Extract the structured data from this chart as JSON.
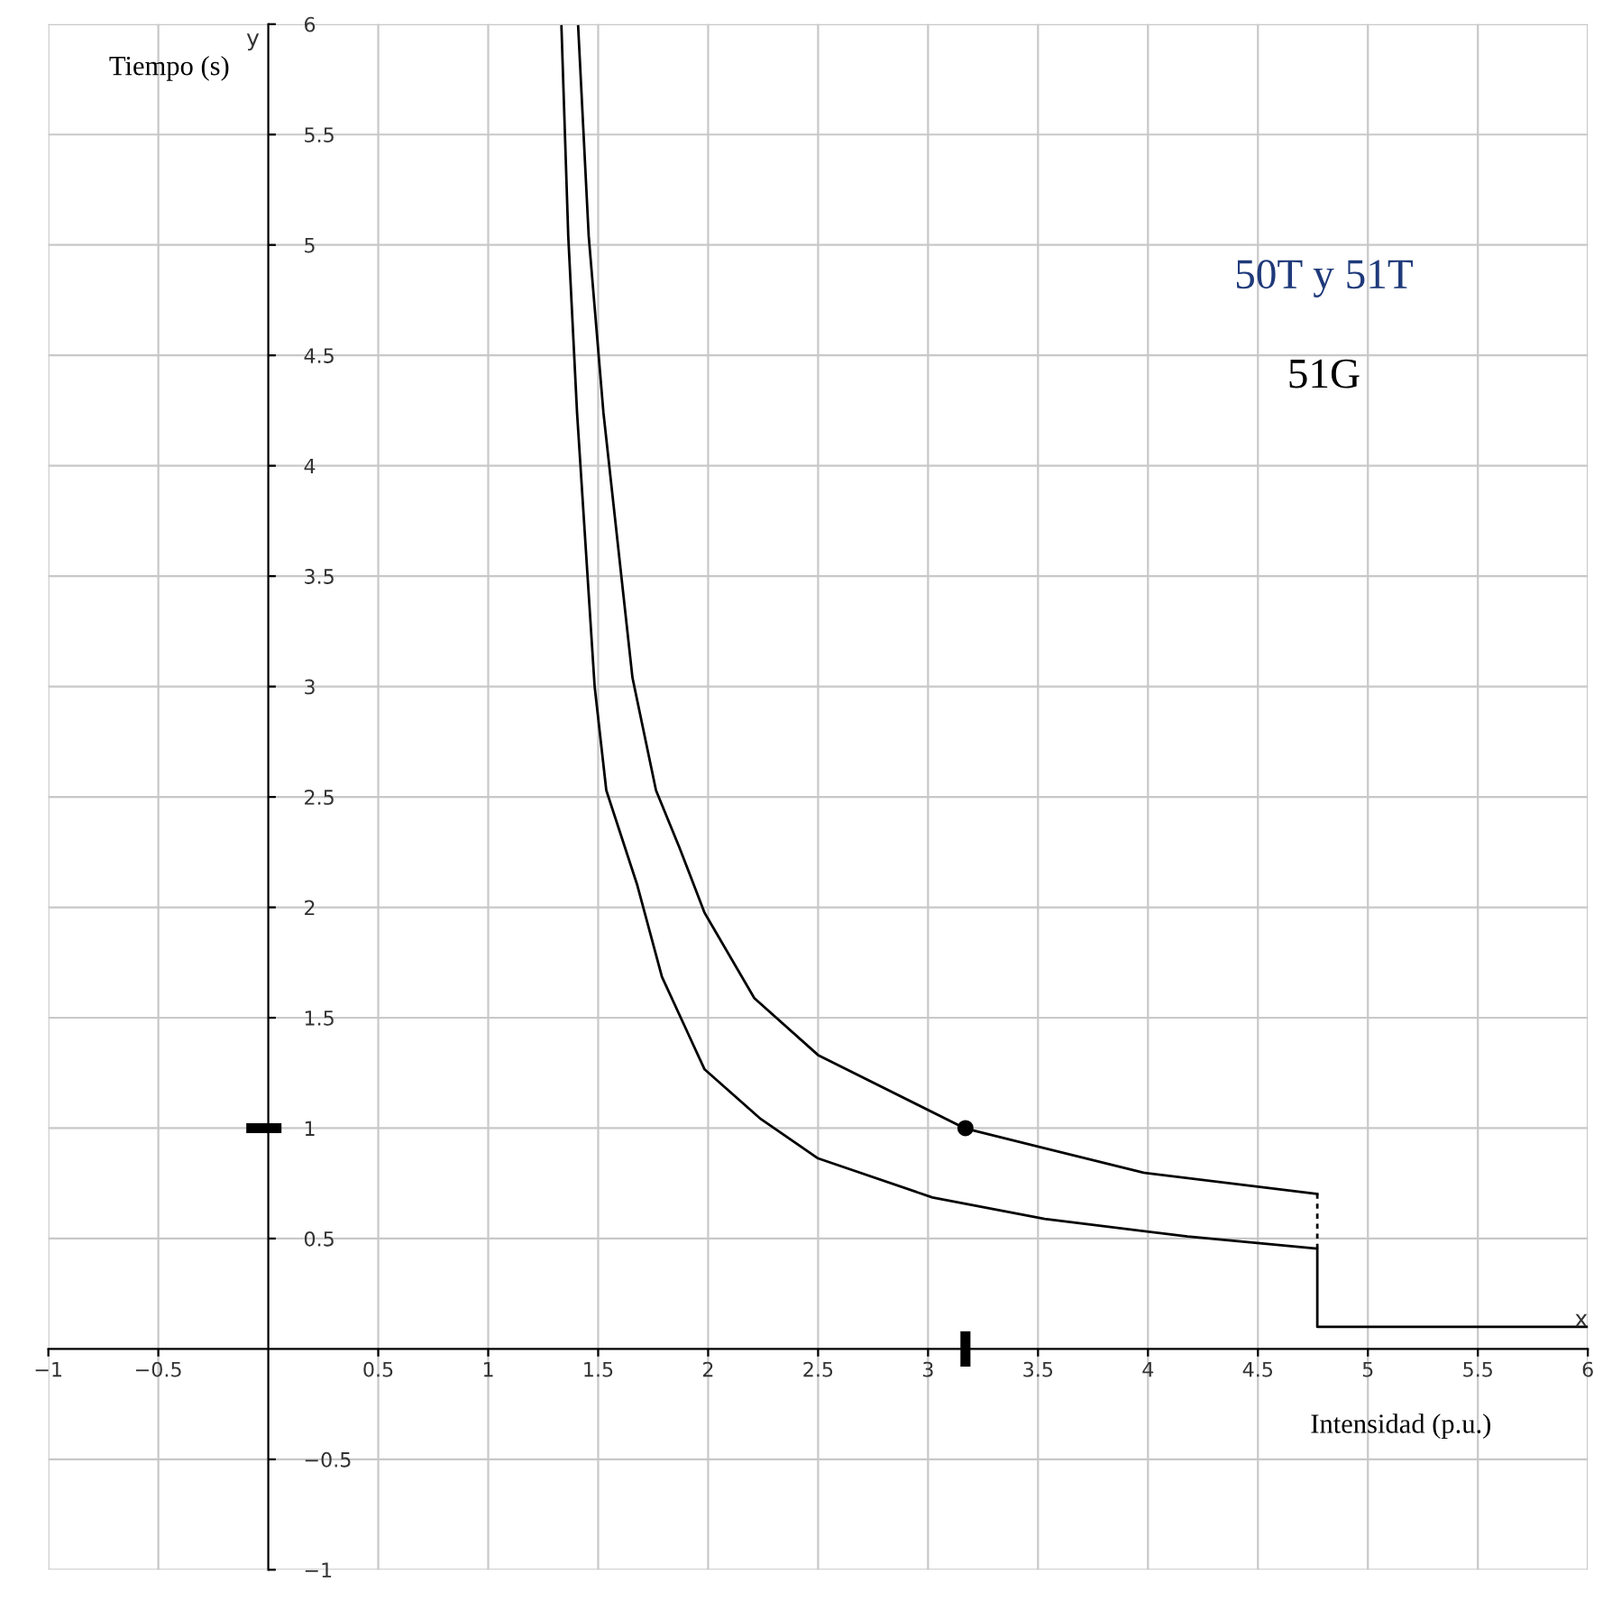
{
  "chart_data": {
    "type": "line",
    "xlabel": "Intensidad (p.u.)",
    "ylabel": "Tiempo (s)",
    "annotations": [
      "50T y 51T",
      "51G",
      "x",
      "y"
    ],
    "xlim": [
      -1,
      6
    ],
    "ylim": [
      -1,
      6
    ],
    "xticks": [
      {
        "value": -1,
        "label": "−1"
      },
      {
        "value": -0.5,
        "label": "−0.5"
      },
      0.5,
      1,
      1.5,
      2,
      2.5,
      3,
      3.5,
      4,
      4.5,
      5,
      5.5,
      6
    ],
    "yticks": [
      {
        "value": -1,
        "label": "−1"
      },
      {
        "value": -0.5,
        "label": "−0.5"
      },
      0.5,
      1,
      1.5,
      2,
      2.5,
      3,
      3.5,
      4,
      4.5,
      5,
      5.5,
      6
    ],
    "grid": true,
    "series": [
      {
        "color": "#000000",
        "x": [
          1.409,
          1.457,
          1.524,
          1.656,
          1.763,
          1.87,
          1.984,
          2.21,
          2.5,
          3.17,
          3.98,
          4.77
        ],
        "values": [
          5.99,
          5.04,
          4.24,
          3.04,
          2.53,
          2.27,
          1.975,
          1.589,
          1.331,
          0.998,
          0.798,
          0.702
        ]
      },
      {
        "color": "#000000",
        "x": [
          1.333,
          1.364,
          1.404,
          1.484,
          1.537,
          1.678,
          1.79,
          1.984,
          2.24,
          2.5,
          3.02,
          3.53,
          4.18,
          4.77,
          4.77,
          6.0
        ],
        "values": [
          5.99,
          5.04,
          4.24,
          3.0,
          2.53,
          2.1,
          1.685,
          1.266,
          1.041,
          0.863,
          0.686,
          0.589,
          0.509,
          0.454,
          0.1,
          0.1
        ]
      },
      {
        "color": "#000000",
        "line_style": "dashed",
        "x": [
          4.77,
          4.77
        ],
        "values": [
          0.454,
          0.702
        ]
      },
      {
        "type": "scatter",
        "marker": "circle",
        "color": "#000000",
        "x": [
          3.17
        ],
        "values": [
          1.0
        ]
      }
    ]
  }
}
